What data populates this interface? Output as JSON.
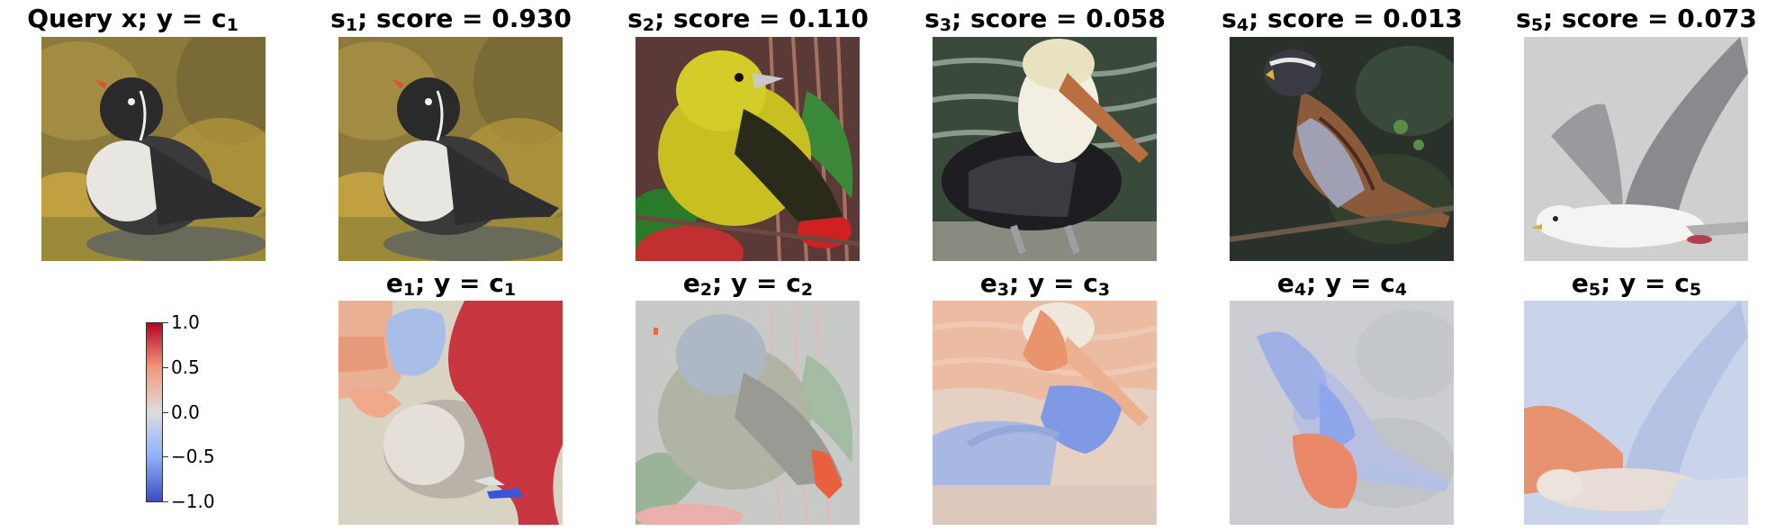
{
  "top_row": [
    {
      "prefix": "Query x; y = c",
      "sub": "1",
      "suffix": "",
      "image": "puffin-photo"
    },
    {
      "prefix": "s",
      "sub": "1",
      "suffix": "; score = 0.930",
      "image": "puffin-photo"
    },
    {
      "prefix": "s",
      "sub": "2",
      "suffix": "; score = 0.110",
      "image": "yellow-oriole-photo"
    },
    {
      "prefix": "s",
      "sub": "3",
      "suffix": "; score = 0.058",
      "image": "pelican-photo"
    },
    {
      "prefix": "s",
      "sub": "4",
      "suffix": "; score = 0.013",
      "image": "sparrow-photo"
    },
    {
      "prefix": "s",
      "sub": "5",
      "suffix": "; score = 0.073",
      "image": "gull-photo"
    }
  ],
  "bottom_row": [
    {
      "e_sub": "1",
      "c_sub": "1"
    },
    {
      "e_sub": "2",
      "c_sub": "2"
    },
    {
      "e_sub": "3",
      "c_sub": "3"
    },
    {
      "e_sub": "4",
      "c_sub": "4"
    },
    {
      "e_sub": "5",
      "c_sub": "5"
    }
  ],
  "colorbar": {
    "ticks": [
      "1.0",
      "0.5",
      "0.0",
      "−0.5",
      "−1.0"
    ],
    "min": -1.0,
    "max": 1.0,
    "colormap": "coolwarm",
    "colors": {
      "high": "#b40426",
      "mid": "#dddddd",
      "low": "#3b4cc0"
    }
  }
}
